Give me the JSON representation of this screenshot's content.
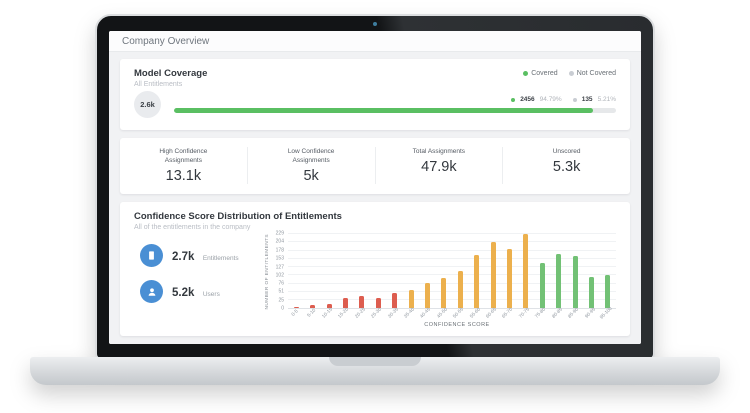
{
  "colors": {
    "covered_green": "#5abf62",
    "not_covered_gray": "#c9cdd3",
    "icon_blue": "#4a8fd4",
    "bar_red": "#dd5d4f",
    "bar_yellow": "#ecb04d",
    "bar_green": "#72c175"
  },
  "titlebar": {
    "title": "Company Overview"
  },
  "model_coverage": {
    "title": "Model Coverage",
    "subtitle": "All Entitlements",
    "legend": [
      {
        "label": "Covered"
      },
      {
        "label": "Not Covered"
      }
    ],
    "badge": "2.6k",
    "covered_count": "2456",
    "covered_pct": "94.79%",
    "not_covered_count": "135",
    "not_covered_pct": "5.21%",
    "bar_width": "94.79%"
  },
  "stats": [
    {
      "label": "High Confidence Assignments",
      "value": "13.1k"
    },
    {
      "label": "Low Confidence Assignments",
      "value": "5k"
    },
    {
      "label": "Total Assignments",
      "value": "47.9k"
    },
    {
      "label": "Unscored",
      "value": "5.3k"
    }
  ],
  "distribution": {
    "title": "Confidence Score Distribution of Entitlements",
    "subtitle": "All of the entitlements in the company",
    "side_stats": [
      {
        "value": "2.7k",
        "label": "Entitlements",
        "icon": "entitlements-icon"
      },
      {
        "value": "5.2k",
        "label": "Users",
        "icon": "users-icon"
      }
    ]
  },
  "chart_data": {
    "type": "bar",
    "title": "Confidence Score Distribution of Entitlements",
    "xlabel": "CONFIDENCE SCORE",
    "ylabel": "NUMBER OF ENTITLEMENTS",
    "categories": [
      "0-5",
      "5-10",
      "10-15",
      "15-20",
      "20-25",
      "25-30",
      "30-35",
      "35-40",
      "40-45",
      "45-50",
      "50-55",
      "55-60",
      "60-65",
      "65-70",
      "70-75",
      "75-80",
      "80-85",
      "85-90",
      "90-95",
      "95-100"
    ],
    "values": [
      2,
      10,
      12,
      30,
      36,
      30,
      47,
      56,
      78,
      92,
      114,
      165,
      205,
      182,
      229,
      140,
      168,
      160,
      96,
      102
    ],
    "bar_colors": [
      "#dd5d4f",
      "#dd5d4f",
      "#dd5d4f",
      "#dd5d4f",
      "#dd5d4f",
      "#dd5d4f",
      "#dd5d4f",
      "#ecb04d",
      "#ecb04d",
      "#ecb04d",
      "#ecb04d",
      "#ecb04d",
      "#ecb04d",
      "#ecb04d",
      "#ecb04d",
      "#72c175",
      "#72c175",
      "#72c175",
      "#72c175",
      "#72c175"
    ],
    "yticks": [
      0,
      25,
      51,
      76,
      102,
      127,
      153,
      178,
      204,
      229
    ],
    "ylim": [
      0,
      229
    ],
    "grid": true,
    "legend_position": "none"
  }
}
